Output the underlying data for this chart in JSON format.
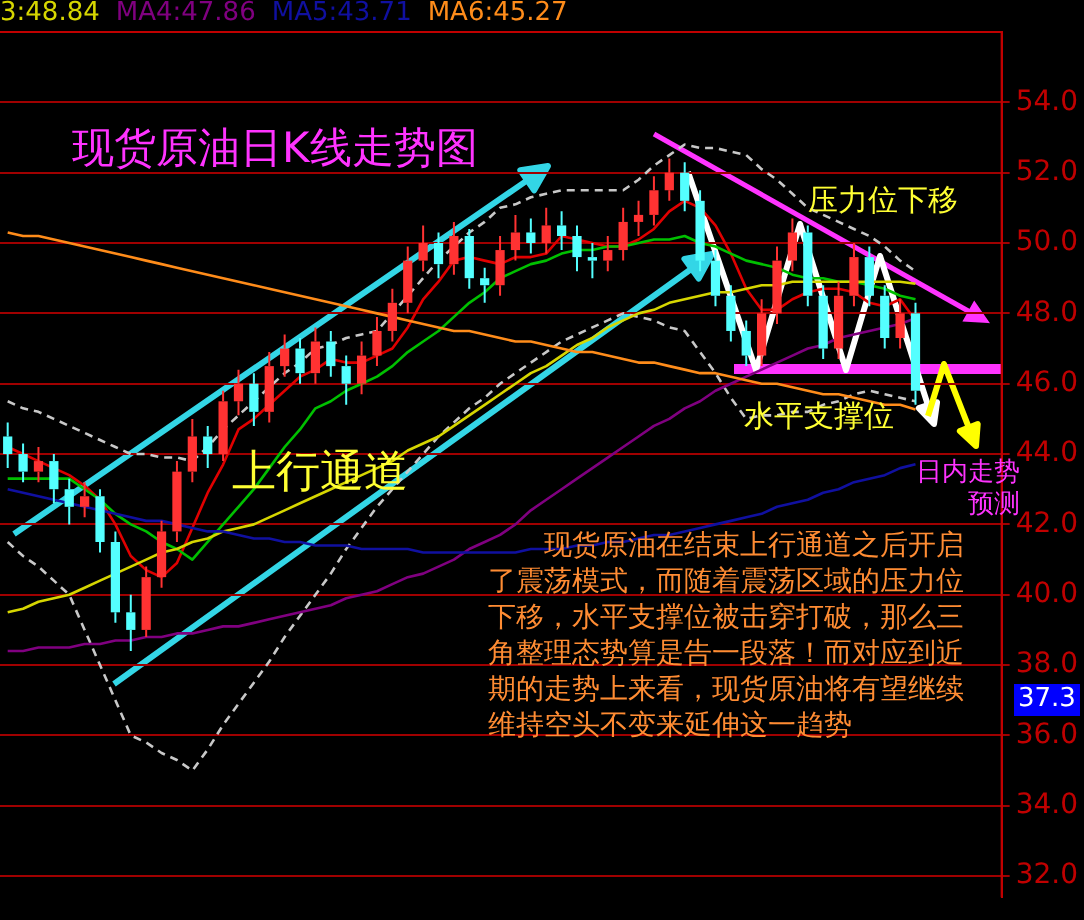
{
  "chart_data": {
    "type": "candlestick",
    "title": "现货原油日K线走势图",
    "grid": "y",
    "tick_labels": "y",
    "categories": [
      null,
      null,
      null,
      null,
      null,
      null,
      null,
      null,
      null,
      null,
      null,
      null,
      null,
      null,
      null,
      null,
      null,
      null,
      null,
      null,
      null,
      null,
      null,
      null,
      null,
      null,
      null,
      null,
      null,
      null,
      null,
      null,
      null,
      null,
      null,
      null,
      null,
      null,
      null,
      null,
      null,
      null,
      null,
      null,
      null,
      null,
      null,
      null,
      null,
      null,
      null,
      null,
      null,
      null,
      null,
      null,
      null,
      null,
      null,
      null
    ],
    "ylim": [
      31.4,
      56.0
    ],
    "yticks": [
      {
        "value": 32,
        "label": "32.0"
      },
      {
        "value": 34,
        "label": "34.0"
      },
      {
        "value": 36,
        "label": "36.0"
      },
      {
        "value": 38,
        "label": "38.0"
      },
      {
        "value": 40,
        "label": "40.0"
      },
      {
        "value": 42,
        "label": "42.0"
      },
      {
        "value": 44,
        "label": "44.0"
      },
      {
        "value": 46,
        "label": "46.0"
      },
      {
        "value": 48,
        "label": "48.0"
      },
      {
        "value": 50,
        "label": "50.0"
      },
      {
        "value": 52,
        "label": "52.0"
      },
      {
        "value": 54,
        "label": "54.0"
      }
    ],
    "series": [
      {
        "type": "line",
        "color": "#ff8c1a",
        "name": "MA6:45.27",
        "values": [
          50.3,
          50.2,
          50.2,
          50.1,
          50.0,
          49.9,
          49.8,
          49.7,
          49.6,
          49.5,
          49.4,
          49.3,
          49.2,
          49.1,
          49.0,
          48.9,
          48.8,
          48.7,
          48.6,
          48.5,
          48.4,
          48.3,
          48.2,
          48.1,
          48.0,
          47.9,
          47.8,
          47.7,
          47.6,
          47.5,
          47.5,
          47.4,
          47.3,
          47.2,
          47.2,
          47.1,
          47.0,
          46.9,
          46.9,
          46.8,
          46.7,
          46.6,
          46.6,
          46.5,
          46.4,
          46.3,
          46.3,
          46.2,
          46.1,
          46.0,
          46.0,
          45.9,
          45.8,
          45.7,
          45.7,
          45.6,
          45.5,
          45.4,
          45.4,
          45.27
        ]
      },
      {
        "type": "line",
        "color": "#1010a0",
        "name": "MA5:43.71",
        "values": [
          43.0,
          42.9,
          42.8,
          42.7,
          42.6,
          42.5,
          42.4,
          42.3,
          42.2,
          42.1,
          42.1,
          42.0,
          41.9,
          41.8,
          41.8,
          41.7,
          41.6,
          41.6,
          41.5,
          41.5,
          41.4,
          41.4,
          41.4,
          41.3,
          41.3,
          41.3,
          41.3,
          41.2,
          41.2,
          41.2,
          41.2,
          41.2,
          41.2,
          41.2,
          41.3,
          41.3,
          41.3,
          41.4,
          41.4,
          41.5,
          41.5,
          41.6,
          41.7,
          41.7,
          41.8,
          41.9,
          42.0,
          42.1,
          42.2,
          42.3,
          42.5,
          42.6,
          42.7,
          42.9,
          43.0,
          43.2,
          43.3,
          43.4,
          43.6,
          43.71
        ]
      },
      {
        "type": "line",
        "color": "#800080",
        "name": "MA4:47.86",
        "values": [
          38.4,
          38.4,
          38.5,
          38.5,
          38.5,
          38.6,
          38.6,
          38.7,
          38.7,
          38.8,
          38.8,
          38.9,
          38.9,
          39.0,
          39.1,
          39.1,
          39.2,
          39.3,
          39.4,
          39.5,
          39.6,
          39.7,
          39.9,
          40.0,
          40.1,
          40.3,
          40.5,
          40.6,
          40.8,
          41.0,
          41.3,
          41.5,
          41.7,
          42.0,
          42.4,
          42.7,
          43.0,
          43.3,
          43.6,
          43.9,
          44.2,
          44.5,
          44.8,
          45.0,
          45.3,
          45.5,
          45.8,
          46.0,
          46.2,
          46.4,
          46.6,
          46.8,
          47.0,
          47.1,
          47.3,
          47.4,
          47.5,
          47.6,
          47.7,
          47.86
        ]
      },
      {
        "type": "line",
        "color": "#d6d600",
        "name": "3:48.84",
        "values": [
          39.5,
          39.6,
          39.8,
          39.9,
          40.0,
          40.2,
          40.4,
          40.6,
          40.8,
          41.0,
          41.2,
          41.3,
          41.5,
          41.6,
          41.8,
          41.9,
          42.0,
          42.2,
          42.4,
          42.6,
          42.8,
          43.0,
          43.2,
          43.4,
          43.6,
          43.8,
          44.1,
          44.3,
          44.5,
          44.8,
          45.1,
          45.4,
          45.7,
          46.0,
          46.3,
          46.5,
          46.8,
          47.1,
          47.3,
          47.6,
          47.8,
          48.0,
          48.1,
          48.3,
          48.4,
          48.5,
          48.6,
          48.6,
          48.7,
          48.8,
          48.8,
          48.9,
          48.9,
          48.9,
          48.9,
          48.9,
          48.9,
          48.9,
          48.9,
          48.84
        ]
      },
      {
        "type": "line",
        "color": "#c8c8c8",
        "line_style": "dashed",
        "values": [
          45.5,
          45.3,
          45.2,
          45.0,
          44.8,
          44.6,
          44.4,
          44.2,
          44.0,
          44.0,
          43.9,
          43.9,
          43.8,
          44.2,
          44.7,
          45.1,
          45.5,
          45.9,
          46.3,
          46.6,
          47.0,
          47.1,
          47.3,
          47.4,
          47.5,
          48.0,
          48.5,
          49.0,
          49.5,
          49.9,
          50.3,
          50.6,
          51.0,
          51.1,
          51.3,
          51.4,
          51.5,
          51.5,
          51.5,
          51.5,
          51.5,
          51.8,
          52.2,
          52.5,
          52.8,
          52.7,
          52.7,
          52.6,
          52.5,
          52.1,
          51.8,
          51.4,
          51.0,
          50.8,
          50.6,
          50.4,
          50.2,
          49.9,
          49.5,
          49.2
        ]
      },
      {
        "type": "line",
        "color": "#c8c8c8",
        "line_style": "dashed",
        "values": [
          41.5,
          41.1,
          40.8,
          40.4,
          40.0,
          39.0,
          38.0,
          37.0,
          36.0,
          35.8,
          35.5,
          35.3,
          35.0,
          35.6,
          36.3,
          36.9,
          37.5,
          38.1,
          38.8,
          39.4,
          40.0,
          40.6,
          41.3,
          41.9,
          42.5,
          43.0,
          43.5,
          44.0,
          44.5,
          44.9,
          45.3,
          45.6,
          46.0,
          46.3,
          46.6,
          46.9,
          47.2,
          47.4,
          47.6,
          47.8,
          48.0,
          47.9,
          47.8,
          47.6,
          47.5,
          46.9,
          46.3,
          45.6,
          45.0,
          45.1,
          45.1,
          45.2,
          45.2,
          45.4,
          45.5,
          45.7,
          45.8,
          45.7,
          45.6,
          45.5
        ]
      },
      {
        "type": "line",
        "color": "#00c000",
        "values": [
          43.3,
          43.3,
          43.3,
          43.3,
          43.3,
          43.0,
          42.7,
          42.3,
          42.0,
          41.8,
          41.5,
          41.3,
          41.0,
          41.5,
          42.0,
          42.5,
          43.0,
          43.6,
          44.2,
          44.7,
          45.3,
          45.5,
          45.8,
          46.0,
          46.2,
          46.5,
          46.9,
          47.2,
          47.5,
          47.9,
          48.3,
          48.6,
          49.0,
          49.2,
          49.4,
          49.5,
          49.7,
          49.8,
          49.8,
          49.9,
          49.9,
          50.0,
          50.1,
          50.1,
          50.2,
          50.0,
          49.9,
          49.7,
          49.5,
          49.4,
          49.3,
          49.1,
          49.0,
          49.0,
          48.9,
          48.9,
          48.8,
          48.7,
          48.5,
          48.4
        ]
      },
      {
        "type": "line",
        "color": "#e00000",
        "values": [
          44.2,
          44.0,
          43.8,
          43.6,
          43.4,
          43.1,
          42.7,
          42.0,
          41.1,
          40.7,
          40.5,
          40.9,
          41.9,
          42.9,
          43.7,
          44.7,
          45.0,
          45.4,
          45.8,
          46.2,
          46.4,
          46.7,
          46.6,
          46.6,
          46.8,
          47.0,
          47.6,
          48.4,
          48.9,
          49.5,
          49.6,
          49.5,
          49.4,
          49.6,
          49.6,
          49.7,
          50.2,
          50.1,
          50.0,
          49.9,
          49.9,
          50.1,
          50.4,
          50.9,
          51.2,
          51.0,
          50.5,
          49.7,
          48.7,
          48.1,
          48.1,
          48.4,
          48.6,
          48.7,
          48.7,
          48.6,
          48.3,
          48.2,
          48.4,
          47.8
        ]
      },
      {
        "ohlc": [
          [
            44.5,
            44.9,
            43.6,
            44.0
          ],
          [
            44.0,
            44.3,
            43.2,
            43.5
          ],
          [
            43.5,
            44.2,
            43.2,
            43.8
          ],
          [
            43.8,
            44.0,
            42.6,
            43.0
          ],
          [
            43.0,
            43.3,
            42.0,
            42.5
          ],
          [
            42.5,
            43.2,
            42.2,
            42.8
          ],
          [
            42.8,
            43.0,
            41.2,
            41.5
          ],
          [
            41.5,
            41.8,
            39.2,
            39.5
          ],
          [
            39.5,
            40.0,
            38.4,
            39.0
          ],
          [
            39.0,
            40.8,
            38.8,
            40.5
          ],
          [
            40.5,
            42.1,
            40.2,
            41.8
          ],
          [
            41.8,
            43.8,
            41.5,
            43.5
          ],
          [
            43.5,
            45.0,
            43.2,
            44.5
          ],
          [
            44.5,
            44.8,
            43.6,
            44.0
          ],
          [
            44.0,
            45.8,
            43.8,
            45.5
          ],
          [
            45.5,
            46.4,
            45.1,
            46.0
          ],
          [
            46.0,
            46.3,
            44.8,
            45.2
          ],
          [
            45.2,
            46.9,
            44.9,
            46.5
          ],
          [
            46.5,
            47.4,
            46.2,
            47.0
          ],
          [
            47.0,
            47.3,
            46.0,
            46.3
          ],
          [
            46.3,
            47.6,
            46.0,
            47.2
          ],
          [
            47.2,
            47.5,
            46.2,
            46.5
          ],
          [
            46.5,
            46.8,
            45.4,
            46.0
          ],
          [
            46.0,
            47.2,
            45.7,
            46.8
          ],
          [
            46.8,
            47.9,
            46.5,
            47.5
          ],
          [
            47.5,
            48.7,
            47.2,
            48.3
          ],
          [
            48.3,
            49.9,
            48.0,
            49.5
          ],
          [
            49.5,
            50.5,
            49.2,
            50.0
          ],
          [
            50.0,
            50.3,
            49.0,
            49.4
          ],
          [
            49.4,
            50.6,
            49.1,
            50.2
          ],
          [
            50.2,
            50.4,
            48.7,
            49.0
          ],
          [
            49.0,
            49.3,
            48.3,
            48.8
          ],
          [
            48.8,
            50.2,
            48.5,
            49.8
          ],
          [
            49.8,
            50.8,
            49.5,
            50.3
          ],
          [
            50.3,
            50.7,
            49.7,
            50.0
          ],
          [
            50.0,
            51.0,
            49.7,
            50.5
          ],
          [
            50.5,
            50.9,
            49.8,
            50.2
          ],
          [
            50.2,
            50.5,
            49.2,
            49.6
          ],
          [
            49.6,
            50.0,
            49.0,
            49.5
          ],
          [
            49.5,
            50.2,
            49.2,
            49.8
          ],
          [
            49.8,
            51.0,
            49.5,
            50.6
          ],
          [
            50.6,
            51.2,
            50.2,
            50.8
          ],
          [
            50.8,
            51.9,
            50.5,
            51.5
          ],
          [
            51.5,
            52.4,
            51.2,
            52.0
          ],
          [
            52.0,
            52.3,
            50.9,
            51.2
          ],
          [
            51.2,
            51.5,
            49.2,
            49.5
          ],
          [
            49.5,
            49.8,
            48.2,
            48.5
          ],
          [
            48.5,
            48.8,
            47.2,
            47.5
          ],
          [
            47.5,
            47.8,
            46.5,
            46.8
          ],
          [
            46.8,
            48.4,
            46.5,
            48.0
          ],
          [
            48.0,
            49.9,
            47.7,
            49.5
          ],
          [
            49.5,
            50.7,
            49.2,
            50.3
          ],
          [
            50.3,
            50.5,
            48.2,
            48.5
          ],
          [
            48.5,
            48.8,
            46.7,
            47.0
          ],
          [
            47.0,
            48.9,
            46.7,
            48.5
          ],
          [
            48.5,
            50.0,
            48.2,
            49.6
          ],
          [
            49.6,
            49.9,
            48.2,
            48.5
          ],
          [
            48.5,
            48.8,
            47.0,
            47.3
          ],
          [
            47.3,
            48.4,
            47.0,
            48.0
          ],
          [
            48.0,
            48.3,
            45.4,
            45.8
          ]
        ]
      }
    ],
    "annotations": [
      "上行通道",
      "压力位下移",
      "水平支撑位",
      "日内走势预测",
      "现货原油在结束上行通道之后开启了震荡模式，而随着震荡区域的压力位下移，水平支撑位被击穿打破，那么三角整理态势算是告一段落！而对应到近期的走势上来看，现货原油将有望继续维持空头不变来延伸这一趋势",
      "37.3"
    ]
  }
}
